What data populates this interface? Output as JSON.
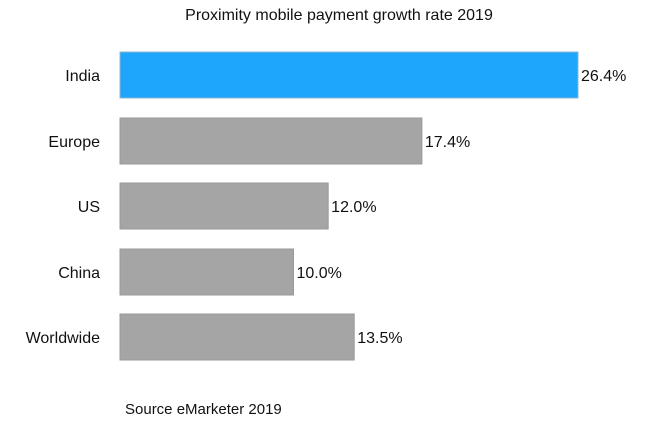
{
  "chart_data": {
    "type": "bar",
    "orientation": "horizontal",
    "title": "Proximity mobile payment growth rate 2019",
    "categories": [
      "India",
      "Europe",
      "US",
      "China",
      "Worldwide"
    ],
    "values": [
      26.4,
      17.4,
      12.0,
      10.0,
      13.5
    ],
    "data_labels": [
      "26.4%",
      "17.4%",
      "12.0%",
      "10.0%",
      "13.5%"
    ],
    "highlight_index": 0,
    "colors": {
      "highlight": "#1EA5FC",
      "default": "#A5A5A5"
    },
    "xlim": [
      0,
      26.4
    ],
    "grid": false,
    "xlabel": "",
    "ylabel": ""
  },
  "source": "Source eMarketer 2019"
}
